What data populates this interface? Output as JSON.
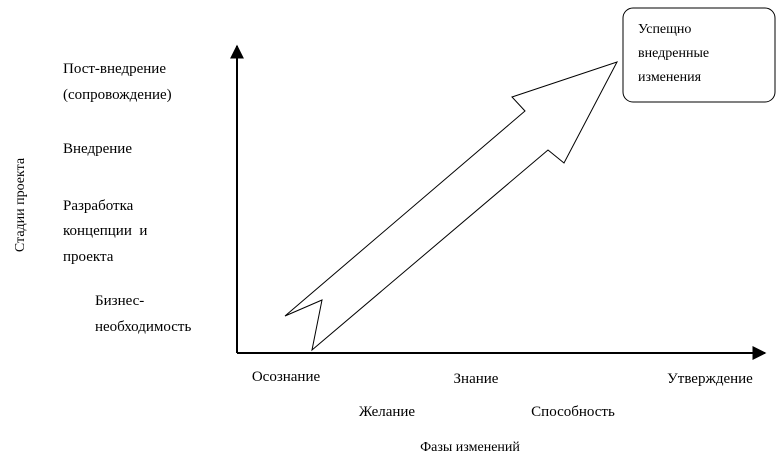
{
  "y_axis": {
    "title": "Стадии проекта",
    "stages": [
      {
        "lines": [
          "Пост-внедрение",
          "(сопровождение)"
        ]
      },
      {
        "lines": [
          "Внедрение"
        ]
      },
      {
        "lines": [
          "Разработка",
          "концепции  и",
          "проекта"
        ]
      },
      {
        "lines": [
          "Бизнес-",
          "необходимость"
        ]
      }
    ]
  },
  "x_axis": {
    "title": "Фазы изменений",
    "phases": [
      "Осознание",
      "Желание",
      "Знание",
      "Способность",
      "Утверждение"
    ]
  },
  "result_box": {
    "lines": [
      "Успещно",
      "внедренные",
      "изменения"
    ]
  }
}
